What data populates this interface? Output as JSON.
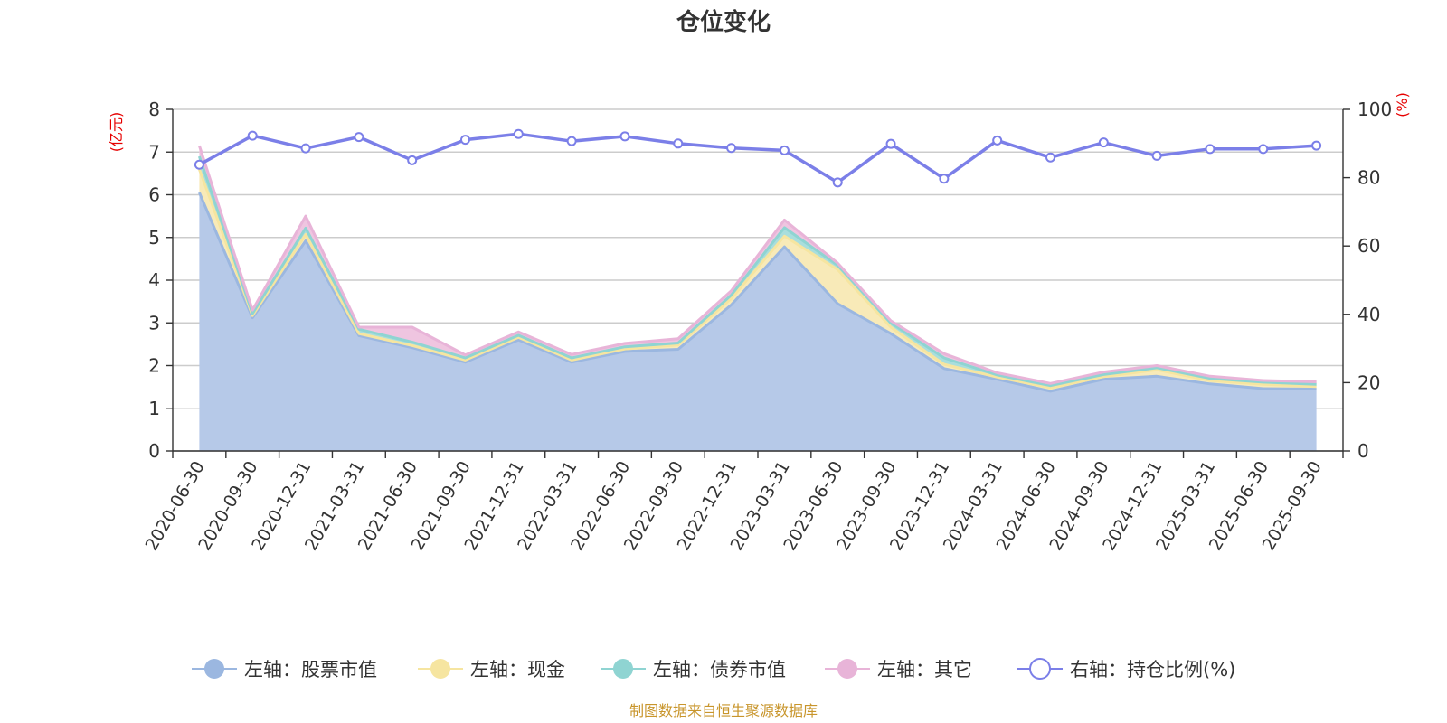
{
  "chart_data": {
    "type": "area",
    "title": "仓位变化",
    "source": "制图数据来自恒生聚源数据库",
    "left_axis": {
      "unit": "(亿元)",
      "min": 0,
      "max": 8,
      "ticks": [
        "0",
        "1",
        "2",
        "3",
        "4",
        "5",
        "6",
        "7",
        "8"
      ]
    },
    "right_axis": {
      "unit": "(%)",
      "min": 0,
      "max": 100,
      "ticks": [
        "0",
        "20",
        "40",
        "60",
        "80",
        "100"
      ]
    },
    "categories": [
      "2020-06-30",
      "2020-09-30",
      "2020-12-31",
      "2021-03-31",
      "2021-06-30",
      "2021-09-30",
      "2021-12-31",
      "2022-03-31",
      "2022-06-30",
      "2022-09-30",
      "2022-12-31",
      "2023-03-31",
      "2023-06-30",
      "2023-09-30",
      "2023-12-31",
      "2024-03-31",
      "2024-06-30",
      "2024-09-30",
      "2024-12-31",
      "2025-03-31",
      "2025-06-30",
      "2025-09-30"
    ],
    "series": [
      {
        "name": "左轴：股票市值",
        "axis": "left",
        "stacked": true,
        "color": "#9bb7e0",
        "fill": "#b6c9e8",
        "values": [
          6.05,
          3.12,
          4.92,
          2.7,
          2.42,
          2.08,
          2.6,
          2.08,
          2.33,
          2.38,
          3.42,
          4.78,
          3.45,
          2.75,
          1.93,
          1.68,
          1.4,
          1.68,
          1.75,
          1.57,
          1.46,
          1.45
        ]
      },
      {
        "name": "左轴：现金",
        "axis": "left",
        "stacked": true,
        "color": "#f6e5a0",
        "fill": "#f8eab8",
        "values": [
          0.55,
          0.05,
          0.15,
          0.05,
          0.05,
          0.05,
          0.06,
          0.05,
          0.06,
          0.1,
          0.15,
          0.25,
          0.8,
          0.15,
          0.1,
          0.05,
          0.08,
          0.06,
          0.15,
          0.08,
          0.1,
          0.06
        ]
      },
      {
        "name": "左轴：债券市值",
        "axis": "left",
        "stacked": true,
        "color": "#8fd4d2",
        "fill": "#a9dedd",
        "values": [
          0.3,
          0.05,
          0.15,
          0.1,
          0.08,
          0.05,
          0.05,
          0.05,
          0.05,
          0.05,
          0.08,
          0.2,
          0.1,
          0.1,
          0.15,
          0.05,
          0.05,
          0.05,
          0.05,
          0.05,
          0.05,
          0.05
        ]
      },
      {
        "name": "左轴：其它",
        "axis": "left",
        "stacked": true,
        "color": "#e8b4d8",
        "fill": "#efc5e0",
        "values": [
          0.25,
          0.08,
          0.28,
          0.05,
          0.35,
          0.07,
          0.08,
          0.08,
          0.08,
          0.1,
          0.1,
          0.18,
          0.05,
          0.05,
          0.1,
          0.05,
          0.05,
          0.06,
          0.05,
          0.05,
          0.04,
          0.06
        ]
      },
      {
        "name": "右轴：持仓比例(%)",
        "axis": "right",
        "stacked": false,
        "color": "#7b7fe8",
        "fill": "#ffffff",
        "values": [
          83.8,
          92.3,
          88.6,
          91.9,
          85.1,
          91.1,
          92.8,
          90.7,
          92.1,
          90.0,
          88.7,
          88.0,
          78.6,
          89.9,
          79.7,
          90.9,
          85.9,
          90.3,
          86.4,
          88.4,
          88.4,
          89.4
        ]
      }
    ]
  }
}
